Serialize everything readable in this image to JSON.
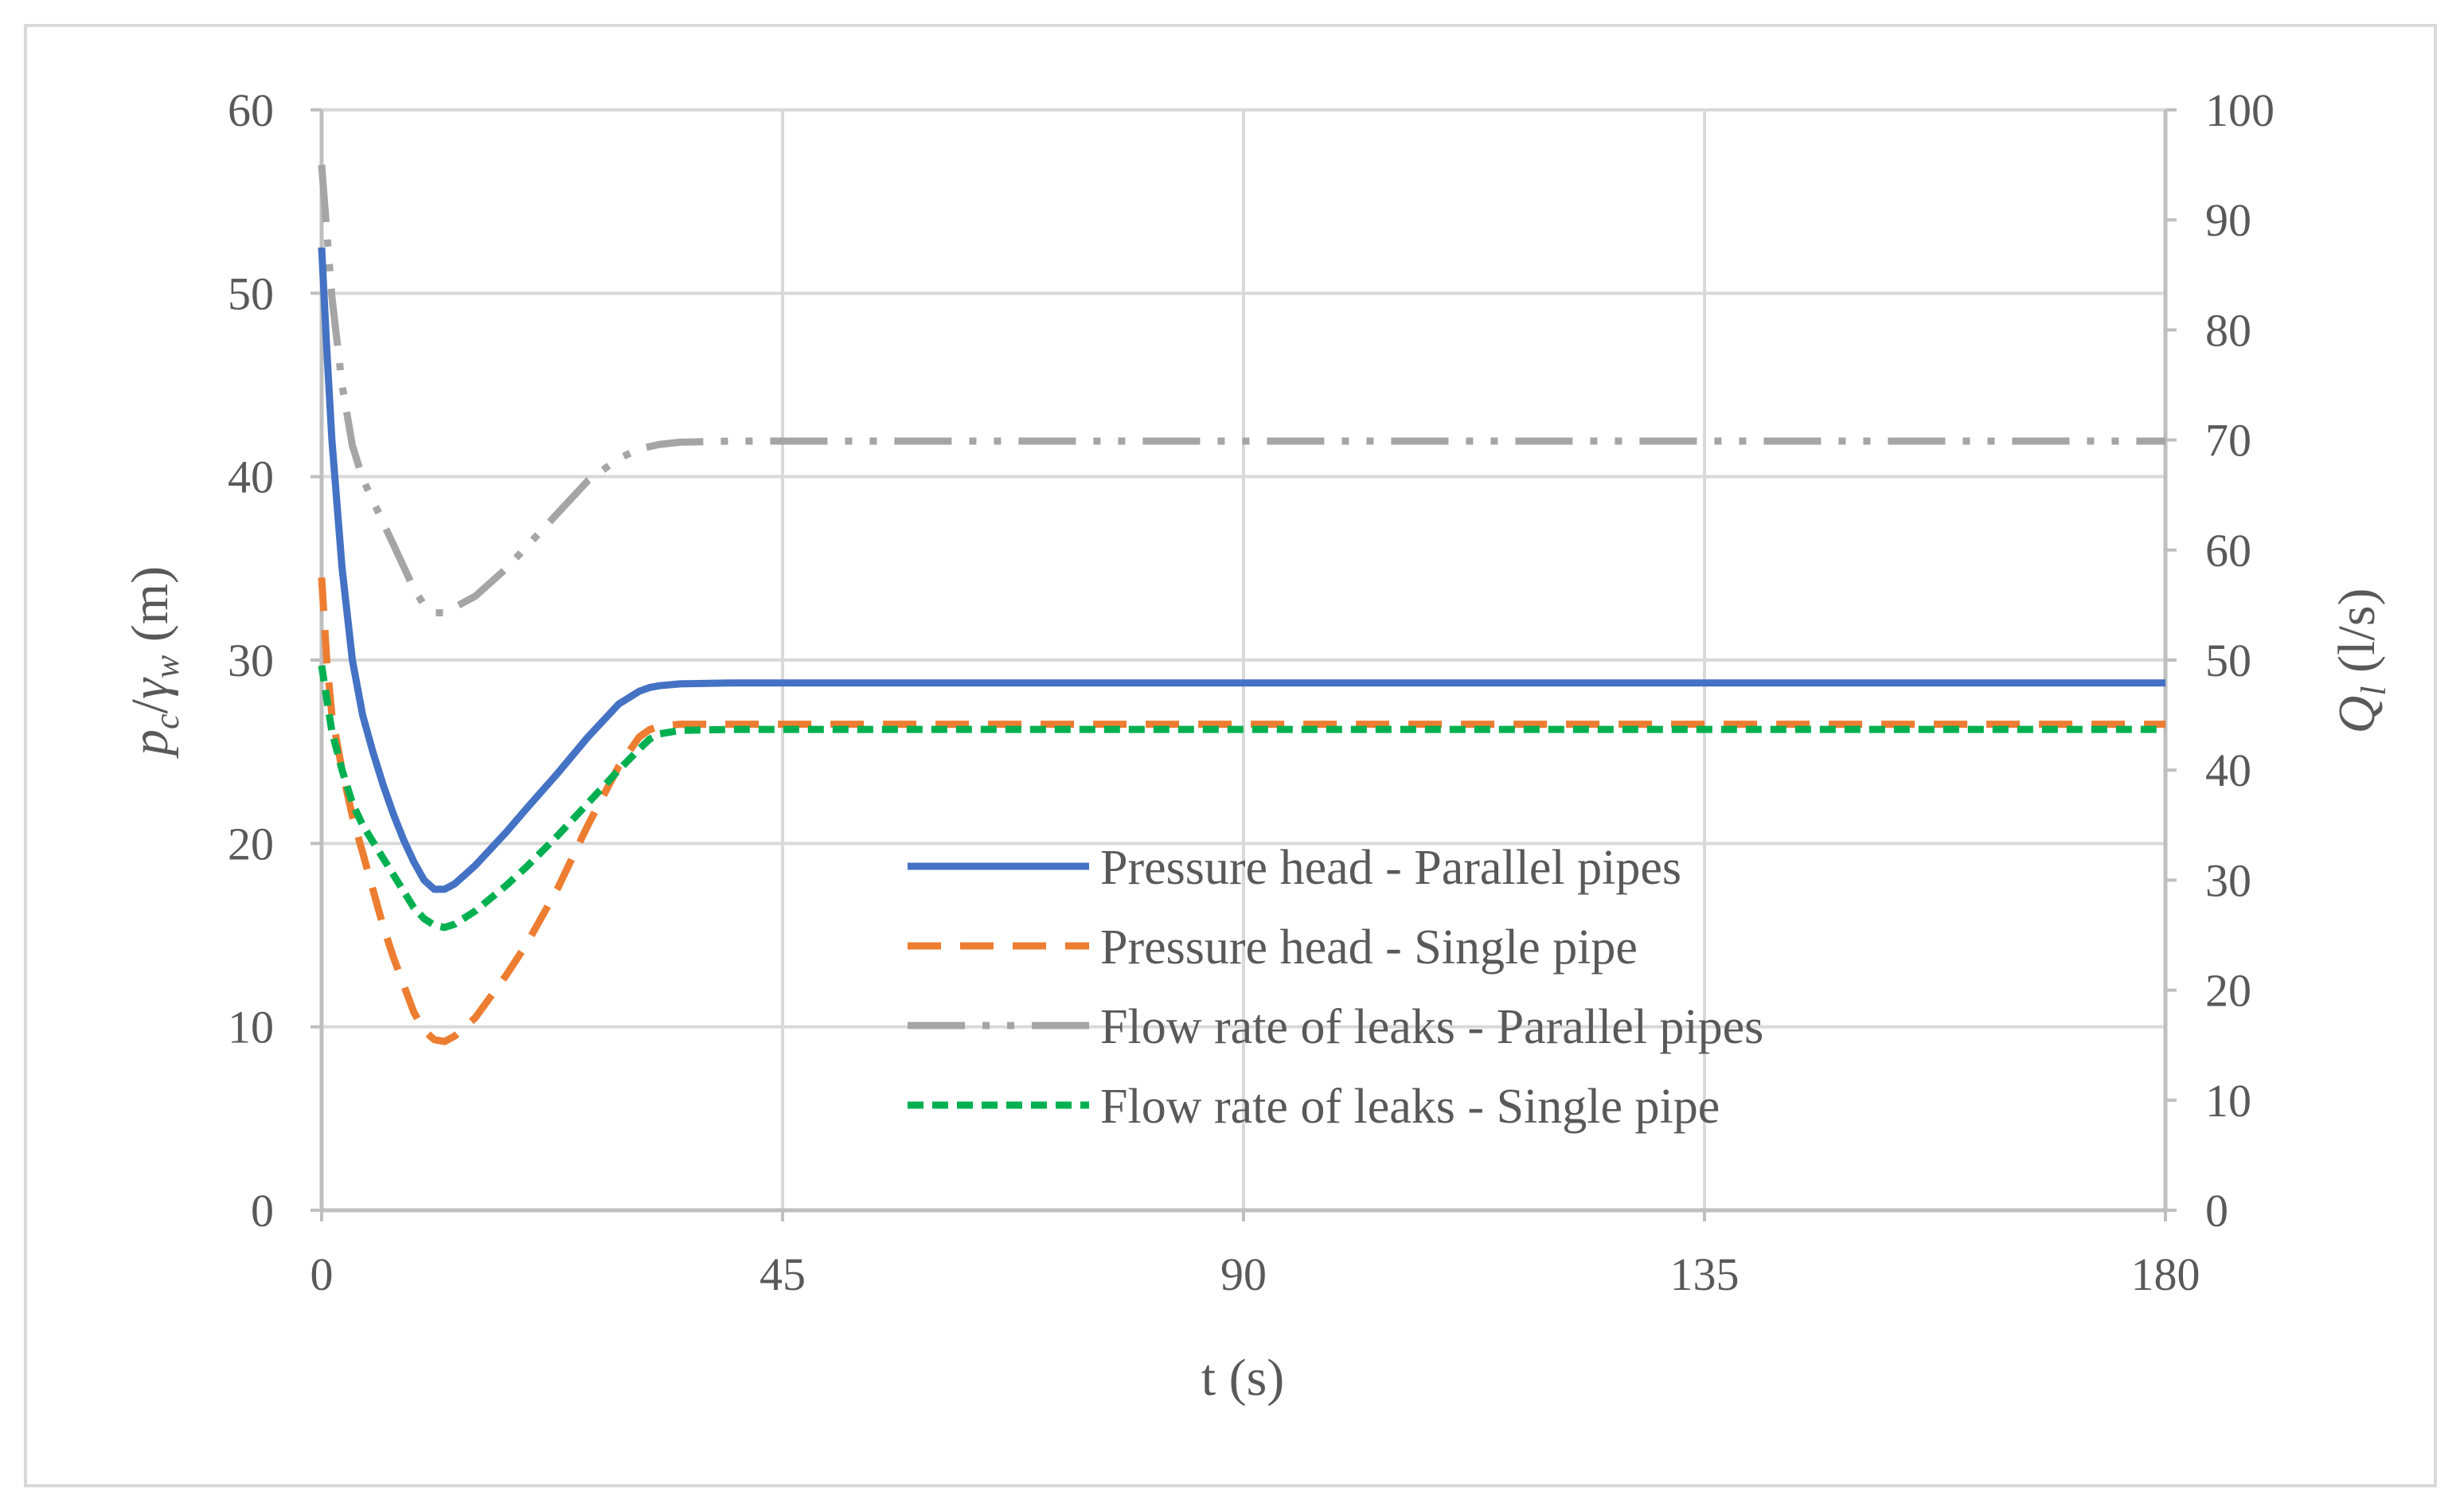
{
  "chart_data": {
    "type": "line",
    "x_axis": {
      "label": "t (s)",
      "range": [
        0,
        180
      ],
      "ticks": [
        0,
        45,
        90,
        135,
        180
      ]
    },
    "y_left": {
      "label_parts": [
        "p",
        "c",
        "/",
        "γ",
        "w",
        " (m)"
      ],
      "range": [
        0,
        60
      ],
      "ticks": [
        0,
        10,
        20,
        30,
        40,
        50,
        60
      ]
    },
    "y_right": {
      "label_parts": [
        "Q",
        "l",
        " (l/s)"
      ],
      "range": [
        0,
        100
      ],
      "ticks": [
        0,
        10,
        20,
        30,
        40,
        50,
        60,
        70,
        80,
        90,
        100
      ]
    },
    "grid": true,
    "legend_position": "center-right",
    "series": [
      {
        "name": "Pressure head - Parallel pipes",
        "axis": "left",
        "color": "#4472c4",
        "style": "solid",
        "x": [
          0,
          0.5,
          1,
          2,
          3,
          4,
          5,
          6,
          7,
          8,
          9,
          10,
          11,
          12,
          13,
          15,
          18,
          20,
          23,
          26,
          29,
          31,
          32,
          33,
          35,
          40,
          45,
          60,
          90,
          120,
          150,
          180
        ],
        "y": [
          52.5,
          47,
          42,
          35,
          30,
          27,
          25,
          23.2,
          21.6,
          20.2,
          19,
          18,
          17.5,
          17.5,
          17.8,
          18.8,
          20.6,
          21.9,
          23.8,
          25.8,
          27.6,
          28.3,
          28.5,
          28.6,
          28.7,
          28.75,
          28.75,
          28.75,
          28.75,
          28.75,
          28.75,
          28.75
        ]
      },
      {
        "name": "Pressure head - Single pipe",
        "axis": "left",
        "color": "#ed7d31",
        "style": "dashed",
        "x": [
          0,
          0.5,
          1,
          2,
          3,
          4,
          5,
          6,
          7,
          8,
          9,
          10,
          11,
          12,
          13,
          15,
          18,
          20,
          23,
          26,
          29,
          31,
          32,
          33,
          35,
          40,
          45,
          60,
          90,
          120,
          150,
          180
        ],
        "y": [
          34.5,
          30,
          27,
          24,
          21.5,
          19.5,
          17.5,
          15.5,
          13.8,
          12.3,
          10.8,
          9.8,
          9.3,
          9.2,
          9.5,
          10.5,
          12.8,
          14.5,
          17.5,
          21,
          24.2,
          25.8,
          26.2,
          26.4,
          26.5,
          26.5,
          26.5,
          26.5,
          26.5,
          26.5,
          26.5,
          26.5
        ]
      },
      {
        "name": "Flow rate of leaks - Parallel pipes",
        "axis": "right",
        "color": "#a5a5a5",
        "style": "dash-dot-dot",
        "x": [
          0,
          0.5,
          1,
          2,
          3,
          4,
          5,
          6,
          7,
          8,
          9,
          10,
          11,
          12,
          13,
          15,
          18,
          20,
          23,
          26,
          29,
          31,
          33,
          35,
          40,
          45,
          60,
          90,
          120,
          150,
          180
        ],
        "y": [
          95,
          89,
          83,
          75,
          69.5,
          66.5,
          64.5,
          62.5,
          60.5,
          58.5,
          56.5,
          55,
          54.3,
          54.3,
          54.8,
          55.8,
          58.3,
          60.3,
          63.3,
          66.3,
          68.3,
          69.2,
          69.6,
          69.8,
          69.9,
          69.9,
          69.9,
          69.9,
          69.9,
          69.9,
          69.9
        ]
      },
      {
        "name": "Flow rate of leaks - Single pipe",
        "axis": "right",
        "color": "#00b050",
        "style": "short-dashed",
        "x": [
          0,
          0.5,
          1,
          2,
          3,
          4,
          5,
          6,
          7,
          8,
          9,
          10,
          11,
          12,
          13,
          15,
          18,
          20,
          23,
          26,
          29,
          31,
          32,
          33,
          35,
          40,
          45,
          60,
          90,
          120,
          150,
          180
        ],
        "y": [
          49.5,
          46.5,
          43.5,
          40,
          37,
          35,
          33.5,
          32,
          30.5,
          29,
          27.5,
          26.5,
          25.9,
          25.7,
          26,
          27.2,
          29.5,
          31.2,
          34,
          37,
          40,
          41.9,
          42.8,
          43.3,
          43.6,
          43.7,
          43.7,
          43.7,
          43.7,
          43.7,
          43.7,
          43.7
        ]
      }
    ]
  },
  "colors": {
    "grid": "#d9d9d9",
    "left_axis": "#bfbfbf",
    "right_axis": "#bfbfbf",
    "text": "#595959"
  }
}
